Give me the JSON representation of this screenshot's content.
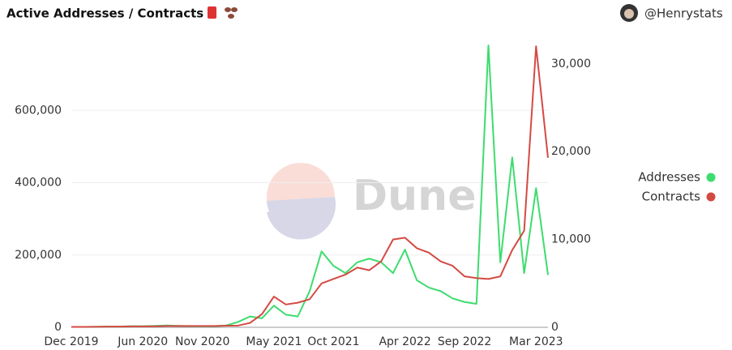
{
  "header": {
    "title": "Active Addresses / Contracts",
    "user": "@Henrystats"
  },
  "watermark": "Dune",
  "chart_data": {
    "type": "line",
    "categories": [
      "Dec 2019",
      null,
      null,
      null,
      null,
      null,
      "Jun 2020",
      null,
      null,
      null,
      null,
      "Nov 2020",
      null,
      null,
      null,
      null,
      null,
      "May 2021",
      null,
      null,
      null,
      null,
      "Oct 2021",
      null,
      null,
      null,
      null,
      null,
      "Apr 2022",
      null,
      null,
      null,
      null,
      "Sep 2022",
      null,
      null,
      null,
      null,
      null,
      "Mar 2023",
      null
    ],
    "series": [
      {
        "name": "Addresses",
        "color": "#3ddc6e",
        "axis": "y",
        "values": [
          1000,
          1000,
          1500,
          2000,
          2000,
          3000,
          3000,
          4000,
          5000,
          4000,
          3000,
          3000,
          3000,
          5000,
          15000,
          30000,
          25000,
          60000,
          35000,
          30000,
          100000,
          210000,
          170000,
          150000,
          180000,
          190000,
          180000,
          150000,
          215000,
          130000,
          110000,
          100000,
          80000,
          70000,
          65000,
          780000,
          180000,
          470000,
          150000,
          385000,
          145000
        ]
      },
      {
        "name": "Contracts",
        "color": "#d44a43",
        "axis": "y2",
        "values": [
          50,
          50,
          60,
          80,
          80,
          100,
          100,
          120,
          150,
          150,
          150,
          150,
          150,
          180,
          200,
          500,
          1500,
          3500,
          2600,
          2800,
          3200,
          5000,
          5500,
          6000,
          6800,
          6500,
          7500,
          10000,
          10200,
          9000,
          8500,
          7500,
          7000,
          5800,
          5600,
          5500,
          5800,
          8800,
          11000,
          32000,
          19300
        ]
      }
    ],
    "ylim": [
      0,
      780000
    ],
    "yticks": [
      0,
      {
        "value": 200000,
        "label": "200,000"
      },
      {
        "value": 400000,
        "label": "400,000"
      },
      {
        "value": 600000,
        "label": "600,000"
      }
    ],
    "y2lim": [
      0,
      32100
    ],
    "y2ticks": [
      0,
      {
        "value": 10000,
        "label": "10,000"
      },
      {
        "value": 20000,
        "label": "20,000"
      },
      {
        "value": 30000,
        "label": "30,000"
      }
    ],
    "grid": true,
    "legend": "right"
  }
}
